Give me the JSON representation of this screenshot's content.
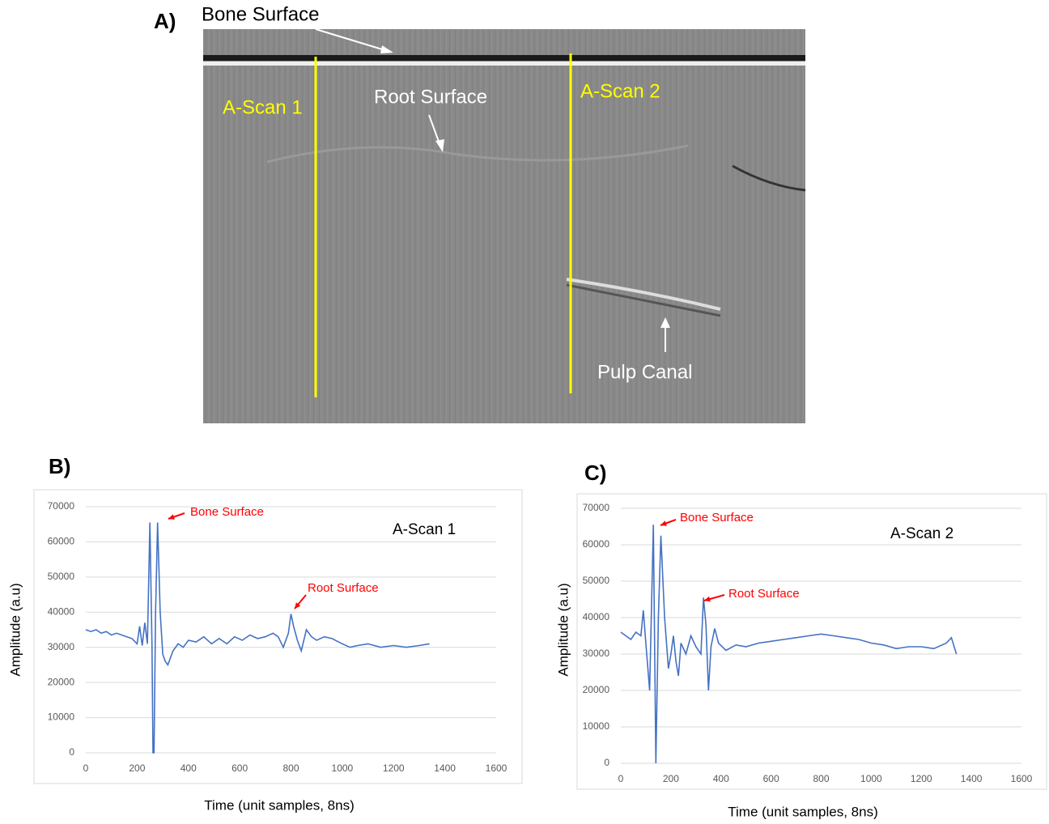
{
  "panel_labels": [
    "A)",
    "B)",
    "C)"
  ],
  "panel_a": {
    "bone_surface": "Bone Surface",
    "root_surface": "Root Surface",
    "a_scan_1": "A-Scan 1",
    "a_scan_2": "A-Scan 2",
    "pulp_canal": "Pulp Canal"
  },
  "chart_data": [
    {
      "type": "line",
      "note": "A-Scan 1",
      "annotations": [
        "Bone Surface",
        "Root Surface"
      ],
      "x_label": "Time (unit samples, 8ns)",
      "y_label": "Amplitude (a.u)",
      "color": "#4472c4",
      "grid": true,
      "xlim": [
        0,
        1600
      ],
      "xticks": [
        0,
        200,
        400,
        600,
        800,
        1000,
        1200,
        1400,
        1600
      ],
      "ylim": [
        0,
        70000
      ],
      "yticks": [
        0,
        10000,
        20000,
        30000,
        40000,
        50000,
        60000,
        70000
      ],
      "x": [
        0,
        20,
        40,
        60,
        80,
        100,
        120,
        140,
        160,
        180,
        200,
        210,
        220,
        230,
        240,
        250,
        258,
        262,
        266,
        272,
        280,
        290,
        300,
        310,
        320,
        340,
        360,
        380,
        400,
        430,
        460,
        490,
        520,
        550,
        580,
        610,
        640,
        670,
        700,
        730,
        750,
        770,
        790,
        800,
        810,
        825,
        840,
        860,
        880,
        900,
        930,
        960,
        1000,
        1030,
        1060,
        1100,
        1150,
        1200,
        1250,
        1300,
        1340
      ],
      "values": [
        35000,
        34500,
        35000,
        34000,
        34500,
        33500,
        34000,
        33500,
        33000,
        32500,
        31000,
        36000,
        30500,
        37000,
        31000,
        65500,
        30000,
        0,
        0,
        40000,
        65500,
        40000,
        28000,
        26000,
        25000,
        29000,
        31000,
        30000,
        32000,
        31500,
        33000,
        31000,
        32500,
        31000,
        33000,
        32000,
        33500,
        32500,
        33000,
        34000,
        33000,
        30000,
        34000,
        39500,
        36000,
        32000,
        29000,
        35000,
        33000,
        32000,
        33000,
        32500,
        31000,
        30000,
        30500,
        31000,
        30000,
        30500,
        30000,
        30500,
        31000
      ]
    },
    {
      "type": "line",
      "note": "A-Scan 2",
      "annotations": [
        "Bone Surface",
        "Root Surface"
      ],
      "x_label": "Time (unit samples, 8ns)",
      "y_label": "Amplitude (a.u)",
      "color": "#4472c4",
      "grid": true,
      "xlim": [
        0,
        1600
      ],
      "xticks": [
        0,
        200,
        400,
        600,
        800,
        1000,
        1200,
        1400,
        1600
      ],
      "ylim": [
        0,
        70000
      ],
      "yticks": [
        0,
        10000,
        20000,
        30000,
        40000,
        50000,
        60000,
        70000
      ],
      "x": [
        0,
        20,
        40,
        60,
        80,
        90,
        100,
        115,
        130,
        140,
        150,
        160,
        175,
        190,
        200,
        210,
        220,
        230,
        240,
        260,
        280,
        300,
        320,
        330,
        340,
        350,
        360,
        375,
        390,
        420,
        460,
        500,
        550,
        600,
        650,
        700,
        750,
        800,
        850,
        900,
        950,
        1000,
        1050,
        1100,
        1150,
        1200,
        1250,
        1300,
        1320,
        1340
      ],
      "values": [
        36000,
        35000,
        34000,
        36000,
        35000,
        42000,
        33000,
        20000,
        65500,
        0,
        40000,
        62500,
        40000,
        26000,
        30000,
        35000,
        28000,
        24000,
        33000,
        30000,
        35000,
        32000,
        30000,
        45500,
        38000,
        20000,
        32000,
        37000,
        33000,
        31000,
        32500,
        32000,
        33000,
        33500,
        34000,
        34500,
        35000,
        35500,
        35000,
        34500,
        34000,
        33000,
        32500,
        31500,
        32000,
        32000,
        31500,
        33000,
        34500,
        30000
      ]
    }
  ]
}
